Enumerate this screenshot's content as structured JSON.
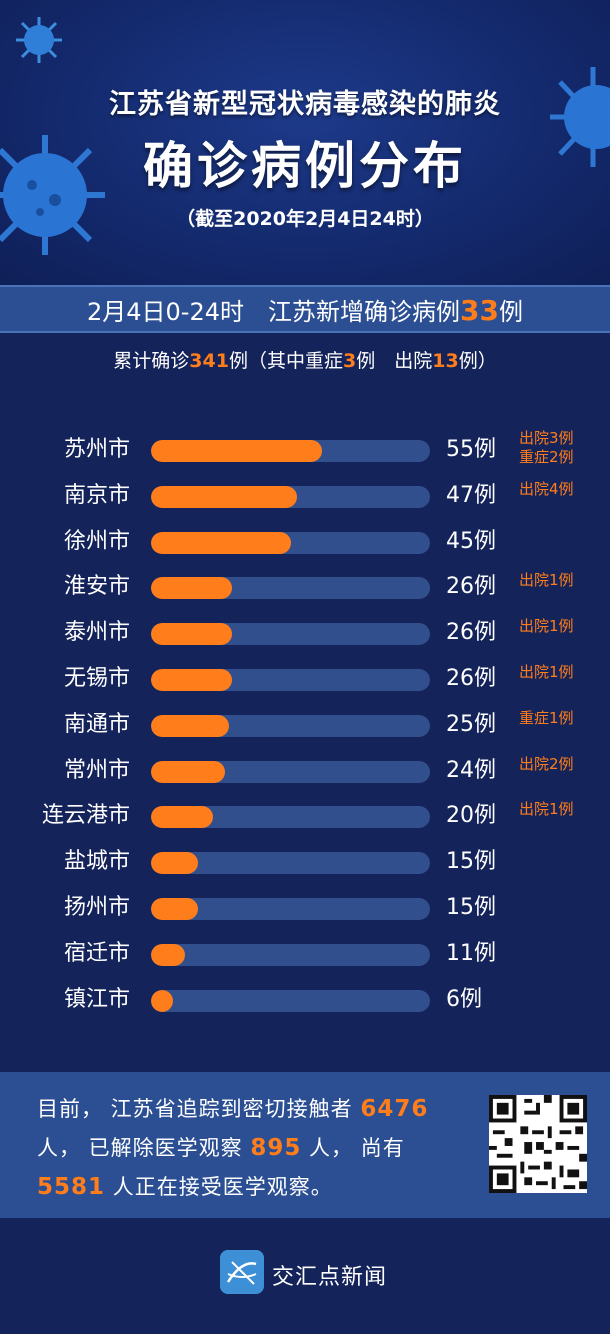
{
  "header": {
    "title_line1": "江苏省新型冠状病毒感染的肺炎",
    "title_line2": "确诊病例分布",
    "as_of": "（截至2020年2月4日24时）"
  },
  "new_cases": {
    "prefix": "2月4日0-24时　江苏新增确诊病例",
    "value": "33",
    "suffix": "例"
  },
  "summary": {
    "t1": "累计确诊",
    "total": "341",
    "t2": "例（其中重症",
    "severe": "3",
    "t3": "例　出院",
    "discharged": "13",
    "t4": "例）"
  },
  "chart_data": {
    "type": "bar",
    "orientation": "horizontal",
    "categories": [
      "苏州市",
      "南京市",
      "徐州市",
      "淮安市",
      "泰州市",
      "无锡市",
      "南通市",
      "常州市",
      "连云港市",
      "盐城市",
      "扬州市",
      "宿迁市",
      "镇江市"
    ],
    "values": [
      55,
      47,
      45,
      26,
      26,
      26,
      25,
      24,
      20,
      15,
      15,
      11,
      6
    ],
    "value_labels": [
      "55例",
      "47例",
      "45例",
      "26例",
      "26例",
      "26例",
      "25例",
      "24例",
      "20例",
      "15例",
      "15例",
      "11例",
      "6例"
    ],
    "notes": [
      [
        "出院3例",
        "重症2例"
      ],
      [
        "出院4例"
      ],
      [],
      [
        "出院1例"
      ],
      [
        "出院1例"
      ],
      [
        "出院1例"
      ],
      [
        "重症1例"
      ],
      [
        "出院2例"
      ],
      [
        "出院1例"
      ],
      [],
      [],
      [],
      []
    ],
    "xlim": [
      0,
      90
    ],
    "bar_color": "#ff7d1a",
    "track_color": "#324f8d"
  },
  "footer": {
    "t1": "目前，  江苏省追踪到密切接触者 ",
    "contacts": "6476",
    "t2": " 人，  已解除医学观察 ",
    "released": "895",
    "t3": " 人，  尚有 ",
    "under_observation": "5581",
    "t4": " 人正在接受医学观察。"
  },
  "brand": {
    "name": "交汇点新闻",
    "logo_icon": "jiaohuidian-logo-icon"
  },
  "colors": {
    "background": "#14235a",
    "accent": "#ff7d1a",
    "band": "#2b4f92"
  }
}
